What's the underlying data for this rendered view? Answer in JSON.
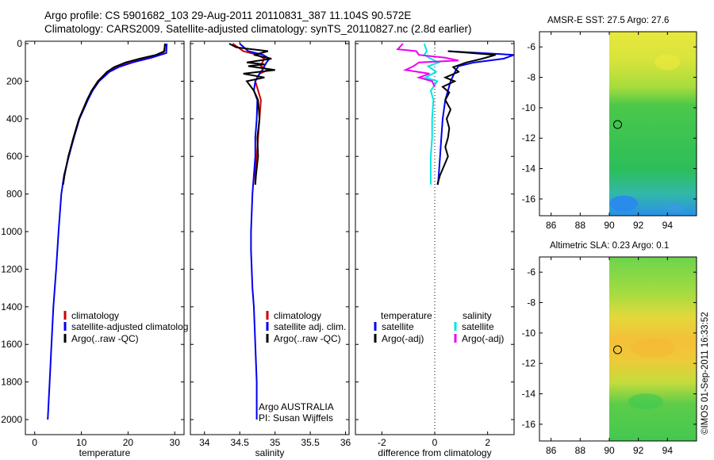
{
  "header": {
    "line1": "Argo profile: CS 5901682_103 29-Aug-2011 20110831_387 11.104S 90.572E",
    "line2": "Climatology: CARS2009. Satellite-adjusted climatology: synTS_20110827.nc (2.8d earlier)"
  },
  "colors": {
    "climatology": "#cc0000",
    "satellite": "#0000ee",
    "argo": "#000000",
    "satellite_salinity": "#00e5e5",
    "argo_salinity": "#ee00ee"
  },
  "chart_data": [
    {
      "type": "line",
      "id": "temperature",
      "xlabel": "temperature",
      "ylabel": "",
      "xlim": [
        -2,
        32
      ],
      "ylim": [
        2080,
        0
      ],
      "xticks": [
        0,
        10,
        20,
        30
      ],
      "yticks": [
        0,
        200,
        400,
        600,
        800,
        1000,
        1200,
        1400,
        1600,
        1800,
        2000
      ],
      "legend": [
        "climatology",
        "satellite-adjusted climatology",
        "Argo(..raw -QC)"
      ],
      "legend_display": [
        "climatology",
        "satellite-adjusted climatolog",
        "Argo(..raw -QC)"
      ],
      "series": [
        {
          "name": "climatology",
          "color": "#cc0000",
          "y": [
            0,
            50,
            75,
            100,
            125,
            150,
            200,
            250,
            300,
            400,
            500,
            600,
            700,
            750
          ],
          "x": [
            28,
            27.6,
            24,
            20,
            17.5,
            15.5,
            13.5,
            12.2,
            11.3,
            9.5,
            8.3,
            7.3,
            6.3,
            6
          ]
        },
        {
          "name": "satellite-adjusted climatology",
          "color": "#0000ee",
          "y": [
            0,
            50,
            75,
            100,
            125,
            150,
            200,
            250,
            300,
            400,
            500,
            600,
            700,
            800,
            1000,
            1200,
            1400,
            1600,
            1800,
            2000
          ],
          "x": [
            28.3,
            28.2,
            25,
            21,
            18,
            16,
            13.8,
            12.4,
            11.4,
            9.6,
            8.4,
            7.3,
            6.3,
            5.7,
            5.1,
            4.6,
            4,
            3.6,
            3.2,
            2.8
          ]
        },
        {
          "name": "Argo(..raw -QC)",
          "color": "#000000",
          "y": [
            0,
            40,
            60,
            80,
            100,
            125,
            150,
            200,
            250,
            300,
            400,
            500,
            600,
            700,
            750
          ],
          "x": [
            27.9,
            27.8,
            26,
            22.5,
            19.5,
            17,
            15.5,
            13.6,
            12.2,
            11.2,
            9.5,
            8.3,
            7.2,
            6.4,
            6.1
          ]
        }
      ]
    },
    {
      "type": "line",
      "id": "salinity",
      "xlabel": "salinity",
      "ylabel": "",
      "xlim": [
        33.8,
        36.05
      ],
      "ylim": [
        2080,
        0
      ],
      "xticks": [
        34,
        34.5,
        35,
        35.5,
        36
      ],
      "legend": [
        "climatology",
        "satellite adj. clim.",
        "Argo(..raw -QC)"
      ],
      "annotation": [
        "Argo AUSTRALIA",
        "PI: Susan Wijffels"
      ],
      "series": [
        {
          "name": "climatology",
          "color": "#cc0000",
          "y": [
            0,
            40,
            60,
            80,
            100,
            120,
            140,
            160,
            200,
            300,
            400,
            500,
            600,
            700,
            750
          ],
          "x": [
            34.4,
            34.55,
            34.75,
            34.85,
            34.82,
            34.8,
            34.9,
            34.78,
            34.72,
            34.8,
            34.78,
            34.76,
            34.74,
            34.72,
            34.72
          ]
        },
        {
          "name": "satellite adj. clim.",
          "color": "#0000ee",
          "y": [
            0,
            40,
            60,
            80,
            100,
            120,
            140,
            160,
            200,
            250,
            300,
            400,
            500,
            600,
            700,
            800,
            900,
            1000,
            1100,
            1200,
            1300,
            1400,
            1500,
            1600,
            1700,
            1800,
            1900,
            2000
          ],
          "x": [
            34.5,
            34.62,
            34.83,
            34.92,
            34.88,
            34.85,
            34.82,
            34.78,
            34.72,
            34.7,
            34.75,
            34.74,
            34.72,
            34.72,
            34.7,
            34.68,
            34.67,
            34.66,
            34.66,
            34.67,
            34.68,
            34.7,
            34.71,
            34.72,
            34.73,
            34.74,
            34.74,
            34.74
          ]
        },
        {
          "name": "Argo(..raw -QC)",
          "color": "#000000",
          "y": [
            0,
            20,
            40,
            60,
            80,
            100,
            110,
            120,
            140,
            160,
            180,
            200,
            250,
            300,
            400,
            500,
            600,
            700,
            750
          ],
          "x": [
            34.35,
            34.45,
            34.9,
            34.7,
            34.95,
            34.6,
            34.85,
            34.62,
            35.0,
            34.55,
            34.85,
            34.6,
            34.7,
            34.76,
            34.78,
            34.75,
            34.76,
            34.73,
            34.72
          ]
        }
      ]
    },
    {
      "type": "line",
      "id": "difference",
      "xlabel": "difference from climatology",
      "ylabel": "",
      "xlim": [
        -3,
        3
      ],
      "ylim": [
        2080,
        0
      ],
      "xticks": [
        -2,
        0,
        2
      ],
      "legend_titles": [
        "temperature",
        "salinity"
      ],
      "legend": [
        {
          "group": "temperature",
          "label": "satellite"
        },
        {
          "group": "temperature",
          "label": "Argo(-adj)"
        },
        {
          "group": "salinity",
          "label": "satellite"
        },
        {
          "group": "salinity",
          "label": "Argo(-adj)"
        }
      ],
      "series": [
        {
          "name": "temperature satellite",
          "color": "#0000ee",
          "y": [
            40,
            60,
            80,
            100,
            120,
            140,
            170,
            200,
            250,
            300,
            400,
            500,
            600,
            700,
            750
          ],
          "x": [
            0.5,
            3,
            2.6,
            1.5,
            0.9,
            0.8,
            0.7,
            0.6,
            0.5,
            0.4,
            0.3,
            0.25,
            0.2,
            0.15,
            0.12
          ]
        },
        {
          "name": "temperature Argo(-adj)",
          "color": "#000000",
          "y": [
            40,
            60,
            80,
            100,
            125,
            150,
            180,
            200,
            230,
            260,
            300,
            350,
            400,
            450,
            500,
            550,
            600,
            650,
            700,
            750
          ],
          "x": [
            0.5,
            2.3,
            1.8,
            1.2,
            0.7,
            0.9,
            0.4,
            0.75,
            0.3,
            0.55,
            0.4,
            0.6,
            0.45,
            0.55,
            0.5,
            0.4,
            0.5,
            0.35,
            0.2,
            0.1
          ]
        },
        {
          "name": "salinity satellite",
          "color": "#00e5e5",
          "y": [
            0,
            40,
            60,
            80,
            100,
            120,
            150,
            180,
            200,
            250,
            300,
            400,
            500,
            600,
            700,
            750
          ],
          "x": [
            -0.4,
            -0.3,
            -0.4,
            -0.15,
            0.15,
            -0.25,
            0.05,
            -0.35,
            0.1,
            -0.15,
            -0.05,
            -0.1,
            -0.1,
            -0.15,
            -0.15,
            -0.15
          ]
        },
        {
          "name": "salinity Argo(-adj)",
          "color": "#ee00ee",
          "y": [
            0,
            30,
            40,
            60,
            75,
            90,
            100,
            120,
            140,
            160,
            180,
            200,
            230
          ],
          "x": [
            -1.2,
            -1.4,
            -0.7,
            -0.6,
            0.4,
            0.9,
            -0.6,
            -0.8,
            -1.1,
            -0.2,
            -0.6,
            -0.1,
            0.0
          ]
        }
      ]
    }
  ],
  "maps": [
    {
      "id": "sst",
      "title": "AMSR-E SST: 27.5 Argo: 27.6",
      "type": "heatmap",
      "xticks": [
        86,
        88,
        90,
        92,
        94
      ],
      "yticks": [
        -6,
        -8,
        -10,
        -12,
        -14,
        -16
      ],
      "xlim": [
        85.2,
        96
      ],
      "ylim": [
        -17.1,
        -5
      ],
      "argo_position": {
        "lon": 90.572,
        "lat": -11.104
      }
    },
    {
      "id": "sla",
      "title": "Altimetric SLA: 0.23 Argo: 0.1",
      "type": "heatmap",
      "xticks": [
        86,
        88,
        90,
        92,
        94
      ],
      "yticks": [
        -6,
        -8,
        -10,
        -12,
        -14,
        -16
      ],
      "xlim": [
        85.2,
        96
      ],
      "ylim": [
        -17.1,
        -5
      ],
      "argo_position": {
        "lon": 90.572,
        "lat": -11.104
      }
    }
  ],
  "footer": {
    "stamp": "©IMOS 01-Sep-2011 16:33:52"
  }
}
